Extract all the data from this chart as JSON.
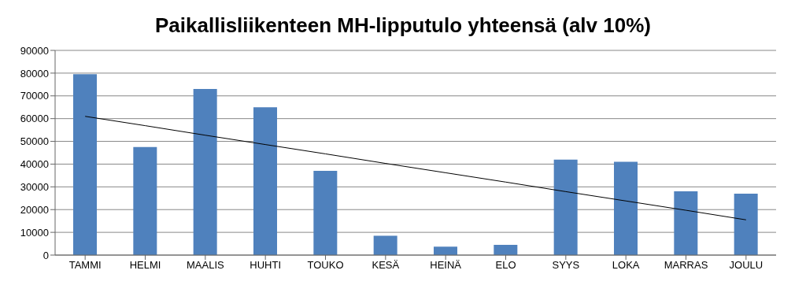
{
  "chart_data": {
    "type": "bar",
    "title": "Paikallisliikenteen MH-lipputulo yhteensä (alv 10%)",
    "categories": [
      "TAMMI",
      "HELMI",
      "MAALIS",
      "HUHTI",
      "TOUKO",
      "KESÄ",
      "HEINÄ",
      "ELO",
      "SYYS",
      "LOKA",
      "MARRAS",
      "JOULU"
    ],
    "series": [
      {
        "color": "#4f81bd",
        "values": [
          79500,
          47500,
          73000,
          65000,
          37000,
          8500,
          3700,
          4500,
          42000,
          41000,
          28000,
          27000
        ]
      },
      {
        "type": "line",
        "color": "#000000",
        "x": [
          "TAMMI",
          "HELMI",
          "MAALIS",
          "HUHTI",
          "TOUKO",
          "KESÄ",
          "HEINÄ",
          "ELO",
          "SYYS",
          "LOKA",
          "MARRAS",
          "JOULU"
        ],
        "values": [
          61000,
          56900,
          52700,
          48600,
          44500,
          40300,
          36200,
          32100,
          27900,
          23800,
          19700,
          15500
        ]
      }
    ],
    "ylim": [
      0,
      90000
    ],
    "yticks": [
      0,
      10000,
      20000,
      30000,
      40000,
      50000,
      60000,
      70000,
      80000,
      90000
    ],
    "grid": "y",
    "legend": false,
    "marker": "none",
    "line_style": "solid"
  }
}
